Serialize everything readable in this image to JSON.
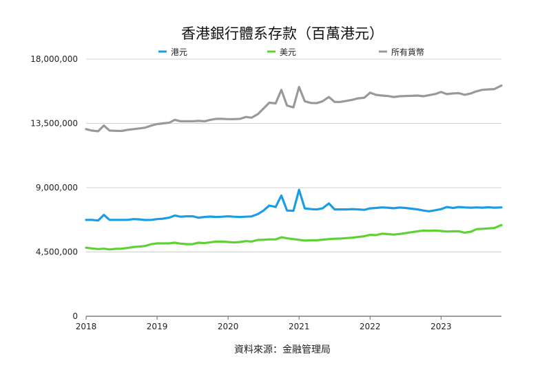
{
  "chart_data": {
    "type": "line",
    "title": "香港銀行體系存款（百萬港元）",
    "source": "資料來源：金融管理局",
    "xlabel": "",
    "ylabel": "",
    "xlim": [
      2018,
      2023.85
    ],
    "ylim": [
      0,
      18000000
    ],
    "y_ticks": [
      0,
      4500000,
      9000000,
      13500000,
      18000000
    ],
    "y_tick_labels": [
      "0",
      "4,500,000",
      "9,000,000",
      "13,500,000",
      "18,000,000"
    ],
    "x_ticks": [
      2018,
      2019,
      2020,
      2021,
      2022,
      2023
    ],
    "x_tick_labels": [
      "2018",
      "2019",
      "2020",
      "2021",
      "2022",
      "2023"
    ],
    "grid": true,
    "legend_position": "top",
    "series": [
      {
        "name": "港元",
        "color": "#1a9de6",
        "points": [
          [
            2018.0,
            6750000
          ],
          [
            2018.08,
            6750000
          ],
          [
            2018.17,
            6700000
          ],
          [
            2018.25,
            7100000
          ],
          [
            2018.33,
            6750000
          ],
          [
            2018.42,
            6750000
          ],
          [
            2018.5,
            6750000
          ],
          [
            2018.58,
            6750000
          ],
          [
            2018.67,
            6800000
          ],
          [
            2018.75,
            6780000
          ],
          [
            2018.83,
            6740000
          ],
          [
            2018.92,
            6750000
          ],
          [
            2019.0,
            6800000
          ],
          [
            2019.08,
            6830000
          ],
          [
            2019.17,
            6900000
          ],
          [
            2019.25,
            7050000
          ],
          [
            2019.33,
            6970000
          ],
          [
            2019.42,
            7000000
          ],
          [
            2019.5,
            7000000
          ],
          [
            2019.58,
            6900000
          ],
          [
            2019.67,
            6950000
          ],
          [
            2019.75,
            6980000
          ],
          [
            2019.83,
            6950000
          ],
          [
            2019.92,
            6970000
          ],
          [
            2020.0,
            7000000
          ],
          [
            2020.08,
            6970000
          ],
          [
            2020.17,
            6950000
          ],
          [
            2020.25,
            6970000
          ],
          [
            2020.33,
            6990000
          ],
          [
            2020.42,
            7150000
          ],
          [
            2020.5,
            7400000
          ],
          [
            2020.58,
            7750000
          ],
          [
            2020.67,
            7650000
          ],
          [
            2020.75,
            8450000
          ],
          [
            2020.83,
            7400000
          ],
          [
            2020.92,
            7380000
          ],
          [
            2021.0,
            8850000
          ],
          [
            2021.08,
            7550000
          ],
          [
            2021.17,
            7500000
          ],
          [
            2021.25,
            7480000
          ],
          [
            2021.33,
            7550000
          ],
          [
            2021.42,
            7900000
          ],
          [
            2021.5,
            7480000
          ],
          [
            2021.58,
            7480000
          ],
          [
            2021.67,
            7480000
          ],
          [
            2021.75,
            7500000
          ],
          [
            2021.83,
            7480000
          ],
          [
            2021.92,
            7450000
          ],
          [
            2022.0,
            7550000
          ],
          [
            2022.08,
            7580000
          ],
          [
            2022.17,
            7620000
          ],
          [
            2022.25,
            7600000
          ],
          [
            2022.33,
            7560000
          ],
          [
            2022.42,
            7610000
          ],
          [
            2022.5,
            7580000
          ],
          [
            2022.58,
            7530000
          ],
          [
            2022.67,
            7480000
          ],
          [
            2022.75,
            7400000
          ],
          [
            2022.83,
            7350000
          ],
          [
            2022.92,
            7420000
          ],
          [
            2023.0,
            7500000
          ],
          [
            2023.08,
            7650000
          ],
          [
            2023.17,
            7580000
          ],
          [
            2023.25,
            7650000
          ],
          [
            2023.33,
            7620000
          ],
          [
            2023.42,
            7600000
          ],
          [
            2023.5,
            7620000
          ],
          [
            2023.58,
            7600000
          ],
          [
            2023.67,
            7630000
          ],
          [
            2023.75,
            7600000
          ],
          [
            2023.85,
            7620000
          ]
        ]
      },
      {
        "name": "美元",
        "color": "#5ed235",
        "points": [
          [
            2018.0,
            4800000
          ],
          [
            2018.08,
            4750000
          ],
          [
            2018.17,
            4700000
          ],
          [
            2018.25,
            4730000
          ],
          [
            2018.33,
            4680000
          ],
          [
            2018.42,
            4720000
          ],
          [
            2018.5,
            4730000
          ],
          [
            2018.58,
            4780000
          ],
          [
            2018.67,
            4850000
          ],
          [
            2018.75,
            4880000
          ],
          [
            2018.83,
            4920000
          ],
          [
            2018.92,
            5050000
          ],
          [
            2019.0,
            5100000
          ],
          [
            2019.08,
            5100000
          ],
          [
            2019.17,
            5100000
          ],
          [
            2019.25,
            5150000
          ],
          [
            2019.33,
            5080000
          ],
          [
            2019.42,
            5050000
          ],
          [
            2019.5,
            5050000
          ],
          [
            2019.58,
            5150000
          ],
          [
            2019.67,
            5120000
          ],
          [
            2019.75,
            5180000
          ],
          [
            2019.83,
            5230000
          ],
          [
            2019.92,
            5220000
          ],
          [
            2020.0,
            5200000
          ],
          [
            2020.08,
            5170000
          ],
          [
            2020.17,
            5200000
          ],
          [
            2020.25,
            5260000
          ],
          [
            2020.33,
            5230000
          ],
          [
            2020.42,
            5340000
          ],
          [
            2020.5,
            5350000
          ],
          [
            2020.58,
            5380000
          ],
          [
            2020.67,
            5380000
          ],
          [
            2020.75,
            5530000
          ],
          [
            2020.83,
            5460000
          ],
          [
            2020.92,
            5400000
          ],
          [
            2021.0,
            5350000
          ],
          [
            2021.08,
            5300000
          ],
          [
            2021.17,
            5320000
          ],
          [
            2021.25,
            5320000
          ],
          [
            2021.33,
            5360000
          ],
          [
            2021.42,
            5400000
          ],
          [
            2021.5,
            5430000
          ],
          [
            2021.58,
            5440000
          ],
          [
            2021.67,
            5470000
          ],
          [
            2021.75,
            5500000
          ],
          [
            2021.83,
            5550000
          ],
          [
            2021.92,
            5600000
          ],
          [
            2022.0,
            5700000
          ],
          [
            2022.08,
            5680000
          ],
          [
            2022.17,
            5780000
          ],
          [
            2022.25,
            5750000
          ],
          [
            2022.33,
            5720000
          ],
          [
            2022.42,
            5760000
          ],
          [
            2022.5,
            5820000
          ],
          [
            2022.58,
            5880000
          ],
          [
            2022.67,
            5950000
          ],
          [
            2022.75,
            6000000
          ],
          [
            2022.83,
            5980000
          ],
          [
            2022.92,
            6000000
          ],
          [
            2023.0,
            5970000
          ],
          [
            2023.08,
            5930000
          ],
          [
            2023.17,
            5950000
          ],
          [
            2023.25,
            5950000
          ],
          [
            2023.33,
            5850000
          ],
          [
            2023.42,
            5920000
          ],
          [
            2023.5,
            6100000
          ],
          [
            2023.58,
            6120000
          ],
          [
            2023.67,
            6150000
          ],
          [
            2023.75,
            6180000
          ],
          [
            2023.85,
            6380000
          ]
        ]
      },
      {
        "name": "所有貨幣",
        "color": "#999999",
        "points": [
          [
            2018.0,
            13100000
          ],
          [
            2018.08,
            13000000
          ],
          [
            2018.17,
            12950000
          ],
          [
            2018.25,
            13350000
          ],
          [
            2018.33,
            13000000
          ],
          [
            2018.42,
            12980000
          ],
          [
            2018.5,
            12970000
          ],
          [
            2018.58,
            13050000
          ],
          [
            2018.67,
            13100000
          ],
          [
            2018.75,
            13150000
          ],
          [
            2018.83,
            13200000
          ],
          [
            2018.92,
            13350000
          ],
          [
            2019.0,
            13450000
          ],
          [
            2019.08,
            13500000
          ],
          [
            2019.17,
            13550000
          ],
          [
            2019.25,
            13750000
          ],
          [
            2019.33,
            13650000
          ],
          [
            2019.42,
            13650000
          ],
          [
            2019.5,
            13650000
          ],
          [
            2019.58,
            13680000
          ],
          [
            2019.67,
            13650000
          ],
          [
            2019.75,
            13750000
          ],
          [
            2019.83,
            13820000
          ],
          [
            2019.92,
            13820000
          ],
          [
            2020.0,
            13800000
          ],
          [
            2020.08,
            13800000
          ],
          [
            2020.17,
            13820000
          ],
          [
            2020.25,
            13950000
          ],
          [
            2020.33,
            13900000
          ],
          [
            2020.42,
            14150000
          ],
          [
            2020.5,
            14550000
          ],
          [
            2020.58,
            14950000
          ],
          [
            2020.67,
            14900000
          ],
          [
            2020.75,
            15850000
          ],
          [
            2020.83,
            14750000
          ],
          [
            2020.92,
            14620000
          ],
          [
            2021.0,
            16050000
          ],
          [
            2021.08,
            15050000
          ],
          [
            2021.17,
            14930000
          ],
          [
            2021.25,
            14920000
          ],
          [
            2021.33,
            15050000
          ],
          [
            2021.42,
            15350000
          ],
          [
            2021.5,
            15000000
          ],
          [
            2021.58,
            15000000
          ],
          [
            2021.67,
            15080000
          ],
          [
            2021.75,
            15150000
          ],
          [
            2021.83,
            15250000
          ],
          [
            2021.92,
            15300000
          ],
          [
            2022.0,
            15650000
          ],
          [
            2022.08,
            15500000
          ],
          [
            2022.17,
            15450000
          ],
          [
            2022.25,
            15420000
          ],
          [
            2022.33,
            15350000
          ],
          [
            2022.42,
            15400000
          ],
          [
            2022.5,
            15420000
          ],
          [
            2022.58,
            15430000
          ],
          [
            2022.67,
            15450000
          ],
          [
            2022.75,
            15400000
          ],
          [
            2022.83,
            15480000
          ],
          [
            2022.92,
            15560000
          ],
          [
            2023.0,
            15700000
          ],
          [
            2023.08,
            15550000
          ],
          [
            2023.17,
            15600000
          ],
          [
            2023.25,
            15620000
          ],
          [
            2023.33,
            15500000
          ],
          [
            2023.42,
            15600000
          ],
          [
            2023.5,
            15750000
          ],
          [
            2023.58,
            15850000
          ],
          [
            2023.67,
            15880000
          ],
          [
            2023.75,
            15900000
          ],
          [
            2023.85,
            16150000
          ]
        ]
      }
    ]
  }
}
